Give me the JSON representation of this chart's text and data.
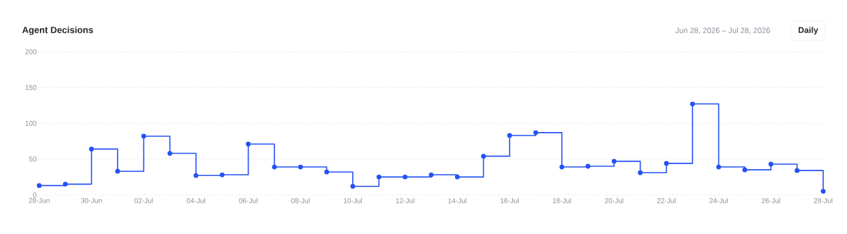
{
  "chart_data": {
    "type": "step",
    "title": "Agent Decisions",
    "subtitle": "Jun 28, 2026 – Jul 28, 2026",
    "annotations": [
      "Daily"
    ],
    "categories": [
      "28-Jun",
      null,
      "30-Jun",
      null,
      "02-Jul",
      null,
      "04-Jul",
      null,
      "06-Jul",
      null,
      "08-Jul",
      null,
      "10-Jul",
      null,
      "12-Jul",
      null,
      "14-Jul",
      null,
      "16-Jul",
      null,
      "18-Jul",
      null,
      "20-Jul",
      null,
      "22-Jul",
      null,
      "24-Jul",
      null,
      "26-Jul",
      null,
      "28-Jul"
    ],
    "values": [
      13,
      15,
      64,
      33,
      82,
      58,
      27,
      28,
      71,
      39,
      39,
      32,
      12,
      25,
      25,
      28,
      25,
      54,
      83,
      87,
      39,
      40,
      47,
      31,
      44,
      127,
      39,
      35,
      43,
      34,
      5
    ],
    "color": "#2451f5",
    "marker": "circle",
    "line_style": "solid",
    "ylim": [
      0,
      200
    ],
    "yticks": [
      0,
      50,
      100,
      150,
      200
    ],
    "grid": "y"
  }
}
